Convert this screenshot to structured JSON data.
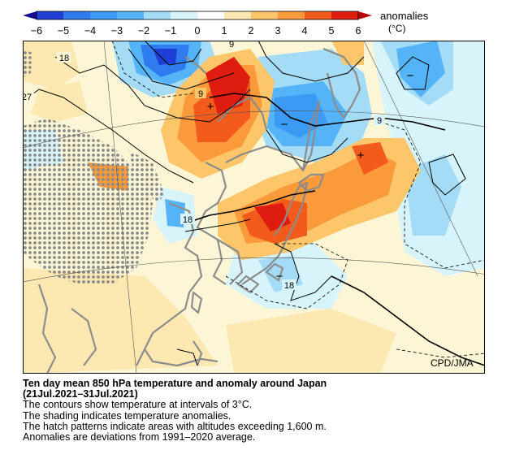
{
  "legend": {
    "label": "anomalies",
    "unit": "(°C)",
    "ticks": [
      "−6",
      "−5",
      "−4",
      "−3",
      "−2",
      "−1",
      "0",
      "1",
      "2",
      "3",
      "4",
      "5",
      "6"
    ],
    "colors": [
      "#1a0a8c",
      "#1f3ed6",
      "#2f7bf0",
      "#55b4f7",
      "#a4dcf7",
      "#d8f4fb",
      "#ffffff",
      "#ffffff",
      "#fde8b2",
      "#fdc66b",
      "#fb9a3a",
      "#f35b1c",
      "#de1d10",
      "#b50b0b"
    ]
  },
  "map": {
    "contour_labels": [
      "18",
      "27",
      "9",
      "9",
      "9",
      "18",
      "18"
    ],
    "symbols": [
      "+",
      "−",
      "−",
      "+",
      "−"
    ],
    "credit": "CPD/JMA"
  },
  "caption": {
    "title": "Ten day mean 850 hPa temperature and anomaly around Japan",
    "period": "(21Jul.2021–31Jul.2021)",
    "line1": "The contours show temperature at intervals of 3°C.",
    "line2": "The shading indicates temperature anomalies.",
    "line3": "The hatch patterns indicate areas with altitudes exceeding 1,600 m.",
    "line4": "Anomalies are deviations from 1991–2020 average."
  }
}
